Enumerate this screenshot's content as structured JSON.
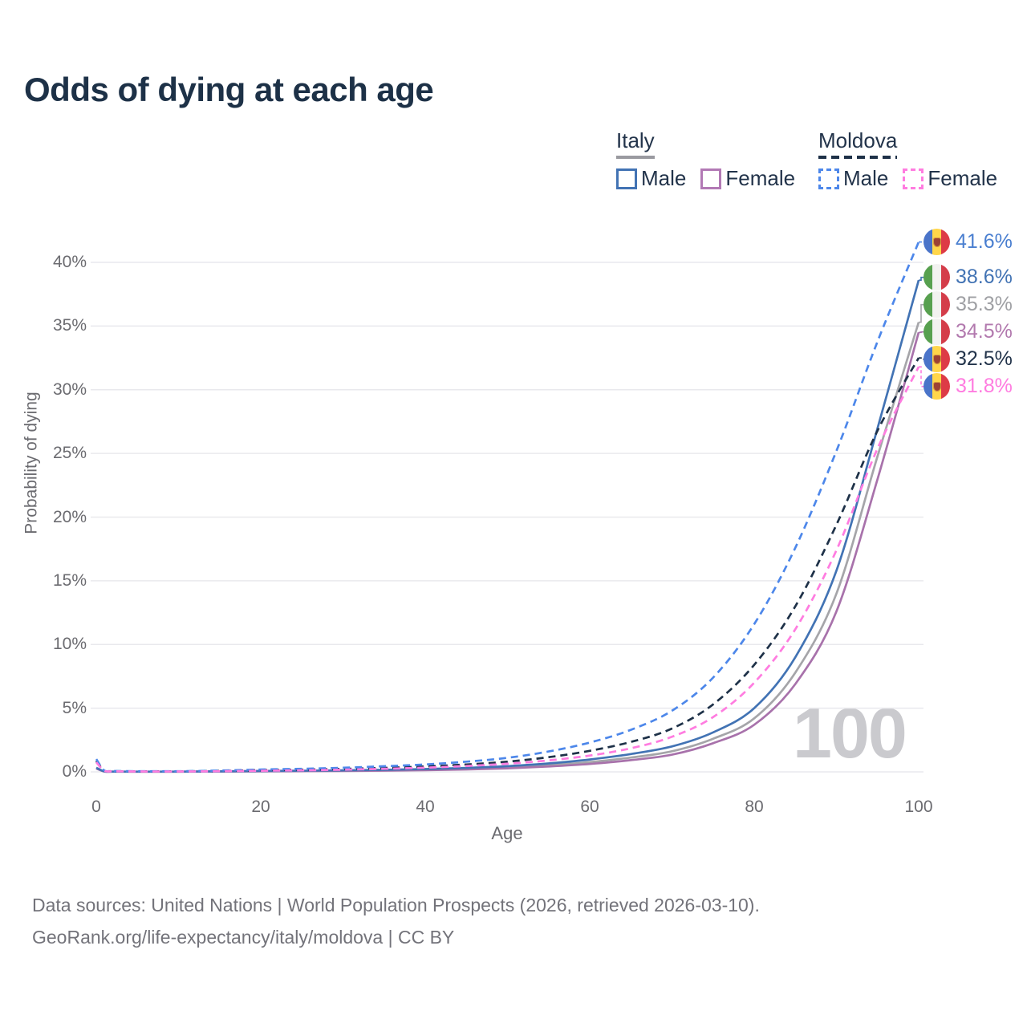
{
  "title": "Odds of dying at each age",
  "legend": {
    "groups": [
      {
        "label": "Italy",
        "underline_color": "#9a9aa0",
        "underline_dashed": false,
        "items": [
          {
            "label": "Male",
            "color": "#4273b4",
            "dashed": false
          },
          {
            "label": "Female",
            "color": "#b279b5",
            "dashed": false
          }
        ]
      },
      {
        "label": "Moldova",
        "underline_color": "#1e3148",
        "underline_dashed": true,
        "items": [
          {
            "label": "Male",
            "color": "#4d87ea",
            "dashed": true
          },
          {
            "label": "Female",
            "color": "#ff7ce0",
            "dashed": true
          }
        ]
      }
    ]
  },
  "chart_data": {
    "type": "line",
    "title": "Odds of dying at each age",
    "xlabel": "Age",
    "ylabel": "Probability of dying",
    "watermark": "100",
    "grid": true,
    "legend_position": "top-right",
    "xlim": [
      0,
      100
    ],
    "ylim": [
      0,
      40
    ],
    "x_ticks": [
      {
        "value": 0,
        "label": "0"
      },
      {
        "value": 20,
        "label": "20"
      },
      {
        "value": 40,
        "label": "40"
      },
      {
        "value": 60,
        "label": "60"
      },
      {
        "value": 80,
        "label": "80"
      },
      {
        "value": 100,
        "label": "100"
      }
    ],
    "y_ticks": [
      {
        "value": 0,
        "label": "0%"
      },
      {
        "value": 5,
        "label": "5%"
      },
      {
        "value": 10,
        "label": "10%"
      },
      {
        "value": 15,
        "label": "15%"
      },
      {
        "value": 20,
        "label": "20%"
      },
      {
        "value": 25,
        "label": "25%"
      },
      {
        "value": 30,
        "label": "30%"
      },
      {
        "value": 35,
        "label": "35%"
      },
      {
        "value": 40,
        "label": "40%"
      }
    ],
    "series": [
      {
        "name": "Italy",
        "country": "italy",
        "sex": "both",
        "color": "#a5a5a9",
        "label_color": "#9fa0a4",
        "dashed": false,
        "end_label": "35.3%",
        "points": [
          [
            0,
            0.29
          ],
          [
            1,
            0.025
          ],
          [
            2,
            0.02
          ],
          [
            5,
            0.015
          ],
          [
            10,
            0.015
          ],
          [
            15,
            0.03
          ],
          [
            20,
            0.05
          ],
          [
            25,
            0.07
          ],
          [
            30,
            0.09
          ],
          [
            35,
            0.12
          ],
          [
            40,
            0.17
          ],
          [
            45,
            0.24
          ],
          [
            50,
            0.35
          ],
          [
            55,
            0.52
          ],
          [
            60,
            0.77
          ],
          [
            65,
            1.12
          ],
          [
            70,
            1.62
          ],
          [
            75,
            2.6
          ],
          [
            80,
            4.2
          ],
          [
            85,
            7.8
          ],
          [
            90,
            14.0
          ],
          [
            95,
            24.8
          ],
          [
            100,
            35.3
          ]
        ]
      },
      {
        "name": "Italy Female",
        "country": "italy",
        "sex": "female",
        "color": "#a872ab",
        "label_color": "#b279ae",
        "dashed": false,
        "end_label": "34.5%",
        "points": [
          [
            0,
            0.26
          ],
          [
            1,
            0.02
          ],
          [
            2,
            0.015
          ],
          [
            5,
            0.012
          ],
          [
            10,
            0.012
          ],
          [
            15,
            0.025
          ],
          [
            20,
            0.04
          ],
          [
            25,
            0.055
          ],
          [
            30,
            0.07
          ],
          [
            35,
            0.095
          ],
          [
            40,
            0.13
          ],
          [
            45,
            0.19
          ],
          [
            50,
            0.28
          ],
          [
            55,
            0.42
          ],
          [
            60,
            0.62
          ],
          [
            65,
            0.92
          ],
          [
            70,
            1.35
          ],
          [
            75,
            2.25
          ],
          [
            80,
            3.7
          ],
          [
            85,
            6.9
          ],
          [
            90,
            12.6
          ],
          [
            95,
            23.0
          ],
          [
            100,
            34.5
          ]
        ]
      },
      {
        "name": "Italy Male",
        "country": "italy",
        "sex": "male",
        "color": "#4273b4",
        "label_color": "#4273b4",
        "dashed": false,
        "end_label": "38.6%",
        "points": [
          [
            0,
            0.32
          ],
          [
            1,
            0.03
          ],
          [
            2,
            0.02
          ],
          [
            5,
            0.02
          ],
          [
            10,
            0.02
          ],
          [
            15,
            0.04
          ],
          [
            20,
            0.07
          ],
          [
            25,
            0.09
          ],
          [
            30,
            0.12
          ],
          [
            35,
            0.16
          ],
          [
            40,
            0.22
          ],
          [
            45,
            0.31
          ],
          [
            50,
            0.45
          ],
          [
            55,
            0.66
          ],
          [
            60,
            0.97
          ],
          [
            65,
            1.4
          ],
          [
            70,
            2.0
          ],
          [
            75,
            3.1
          ],
          [
            80,
            5.0
          ],
          [
            85,
            9.0
          ],
          [
            90,
            15.8
          ],
          [
            95,
            27.0
          ],
          [
            100,
            38.6
          ]
        ]
      },
      {
        "name": "Moldova",
        "country": "moldova",
        "sex": "both",
        "color": "#1e3148",
        "label_color": "#22334a",
        "dashed": true,
        "end_label": "32.5%",
        "points": [
          [
            0,
            0.85
          ],
          [
            1,
            0.07
          ],
          [
            2,
            0.05
          ],
          [
            5,
            0.04
          ],
          [
            10,
            0.04
          ],
          [
            15,
            0.07
          ],
          [
            20,
            0.13
          ],
          [
            25,
            0.17
          ],
          [
            30,
            0.23
          ],
          [
            35,
            0.31
          ],
          [
            40,
            0.42
          ],
          [
            45,
            0.58
          ],
          [
            50,
            0.8
          ],
          [
            55,
            1.15
          ],
          [
            60,
            1.65
          ],
          [
            65,
            2.35
          ],
          [
            70,
            3.4
          ],
          [
            75,
            5.3
          ],
          [
            80,
            8.4
          ],
          [
            85,
            13.0
          ],
          [
            90,
            19.4
          ],
          [
            95,
            26.8
          ],
          [
            100,
            32.5
          ]
        ]
      },
      {
        "name": "Moldova Male",
        "country": "moldova",
        "sex": "male",
        "color": "#4d87ea",
        "label_color": "#4a7fd0",
        "dashed": true,
        "end_label": "41.6%",
        "points": [
          [
            0,
            1.0
          ],
          [
            1,
            0.08
          ],
          [
            2,
            0.06
          ],
          [
            5,
            0.05
          ],
          [
            10,
            0.05
          ],
          [
            15,
            0.1
          ],
          [
            20,
            0.18
          ],
          [
            25,
            0.24
          ],
          [
            30,
            0.32
          ],
          [
            35,
            0.44
          ],
          [
            40,
            0.58
          ],
          [
            45,
            0.8
          ],
          [
            50,
            1.1
          ],
          [
            55,
            1.6
          ],
          [
            60,
            2.3
          ],
          [
            65,
            3.3
          ],
          [
            70,
            4.8
          ],
          [
            75,
            7.4
          ],
          [
            80,
            11.6
          ],
          [
            85,
            17.6
          ],
          [
            90,
            25.2
          ],
          [
            95,
            33.8
          ],
          [
            100,
            41.6
          ]
        ]
      },
      {
        "name": "Moldova Female",
        "country": "moldova",
        "sex": "female",
        "color": "#ff7ce0",
        "label_color": "#ff7ce0",
        "dashed": true,
        "end_label": "31.8%",
        "points": [
          [
            0,
            0.75
          ],
          [
            1,
            0.06
          ],
          [
            2,
            0.04
          ],
          [
            5,
            0.03
          ],
          [
            10,
            0.03
          ],
          [
            15,
            0.05
          ],
          [
            20,
            0.09
          ],
          [
            25,
            0.12
          ],
          [
            30,
            0.17
          ],
          [
            35,
            0.24
          ],
          [
            40,
            0.33
          ],
          [
            45,
            0.46
          ],
          [
            50,
            0.64
          ],
          [
            55,
            0.9
          ],
          [
            60,
            1.28
          ],
          [
            65,
            1.85
          ],
          [
            70,
            2.75
          ],
          [
            75,
            4.3
          ],
          [
            80,
            7.0
          ],
          [
            85,
            11.2
          ],
          [
            90,
            17.4
          ],
          [
            95,
            25.4
          ],
          [
            100,
            31.8
          ]
        ]
      }
    ]
  },
  "footer": {
    "line1": "Data sources: United Nations | World Population Prospects (2026, retrieved 2026-03-10).",
    "line2": "GeoRank.org/life-expectancy/italy/moldova | CC BY"
  }
}
